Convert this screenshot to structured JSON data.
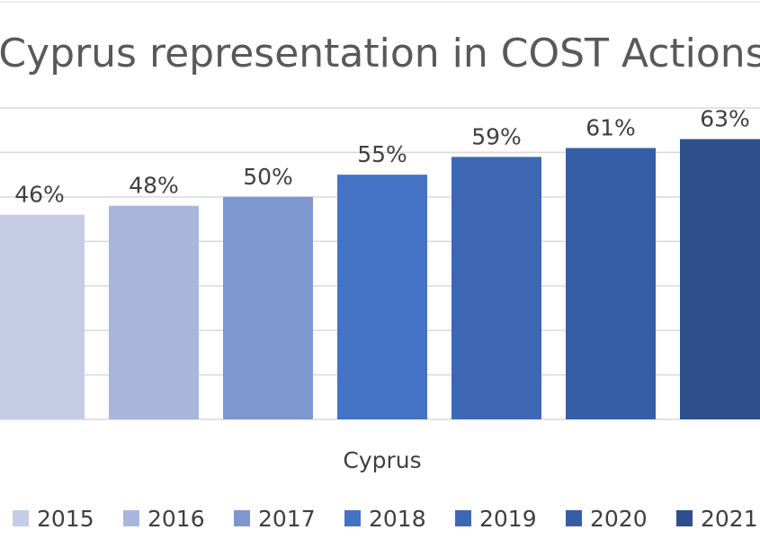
{
  "chart_data": {
    "type": "bar",
    "title": "Cyprus representation in COST Actions",
    "categories": [
      "Cyprus"
    ],
    "xlabel": "Cyprus",
    "ylabel": "",
    "ylim": [
      0,
      0.7
    ],
    "grid": true,
    "legend_position": "bottom",
    "series": [
      {
        "name": "2015",
        "values": [
          0.46
        ],
        "label": "46%",
        "color": "#c5cde6"
      },
      {
        "name": "2016",
        "values": [
          0.48
        ],
        "label": "48%",
        "color": "#a9b6dc"
      },
      {
        "name": "2017",
        "values": [
          0.5
        ],
        "label": "50%",
        "color": "#7f97cf"
      },
      {
        "name": "2018",
        "values": [
          0.55
        ],
        "label": "55%",
        "color": "#4472c4"
      },
      {
        "name": "2019",
        "values": [
          0.59
        ],
        "label": "59%",
        "color": "#3f68b4"
      },
      {
        "name": "2020",
        "values": [
          0.61
        ],
        "label": "61%",
        "color": "#365ea6"
      },
      {
        "name": "2021",
        "values": [
          0.63
        ],
        "label": "63%",
        "color": "#2e4f8c"
      }
    ]
  }
}
